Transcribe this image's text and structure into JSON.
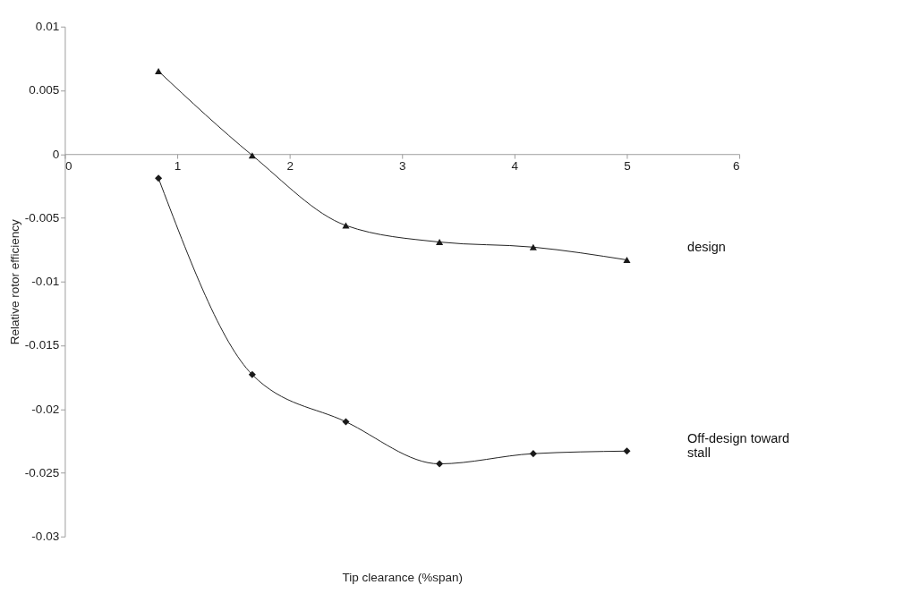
{
  "chart_data": {
    "type": "line",
    "xlabel": "Tip clearance (%span)",
    "ylabel": "Relative rotor efficiency",
    "x": [
      0.833,
      1.667,
      2.5,
      3.333,
      4.167,
      5
    ],
    "series": [
      {
        "name": "design",
        "color": "#1a1a1a",
        "marker": "triangle",
        "values": [
          0.0065,
          -0.0001,
          -0.0056,
          -0.0069,
          -0.0073,
          -0.0083
        ]
      },
      {
        "name": "Off-design toward\nstall",
        "color": "#1a1a1a",
        "marker": "diamond",
        "values": [
          -0.0019,
          -0.0173,
          -0.021,
          -0.0243,
          -0.0235,
          -0.0233
        ]
      }
    ],
    "xlim": [
      0,
      6
    ],
    "xticks": [
      0,
      1,
      2,
      3,
      4,
      5,
      6
    ],
    "ylim": [
      -0.03,
      0.01
    ],
    "yticks": [
      -0.03,
      -0.025,
      -0.02,
      -0.015,
      -0.01,
      -0.005,
      0,
      0.005,
      0.01
    ],
    "grid": false,
    "legend": false,
    "line_style": "solid"
  }
}
